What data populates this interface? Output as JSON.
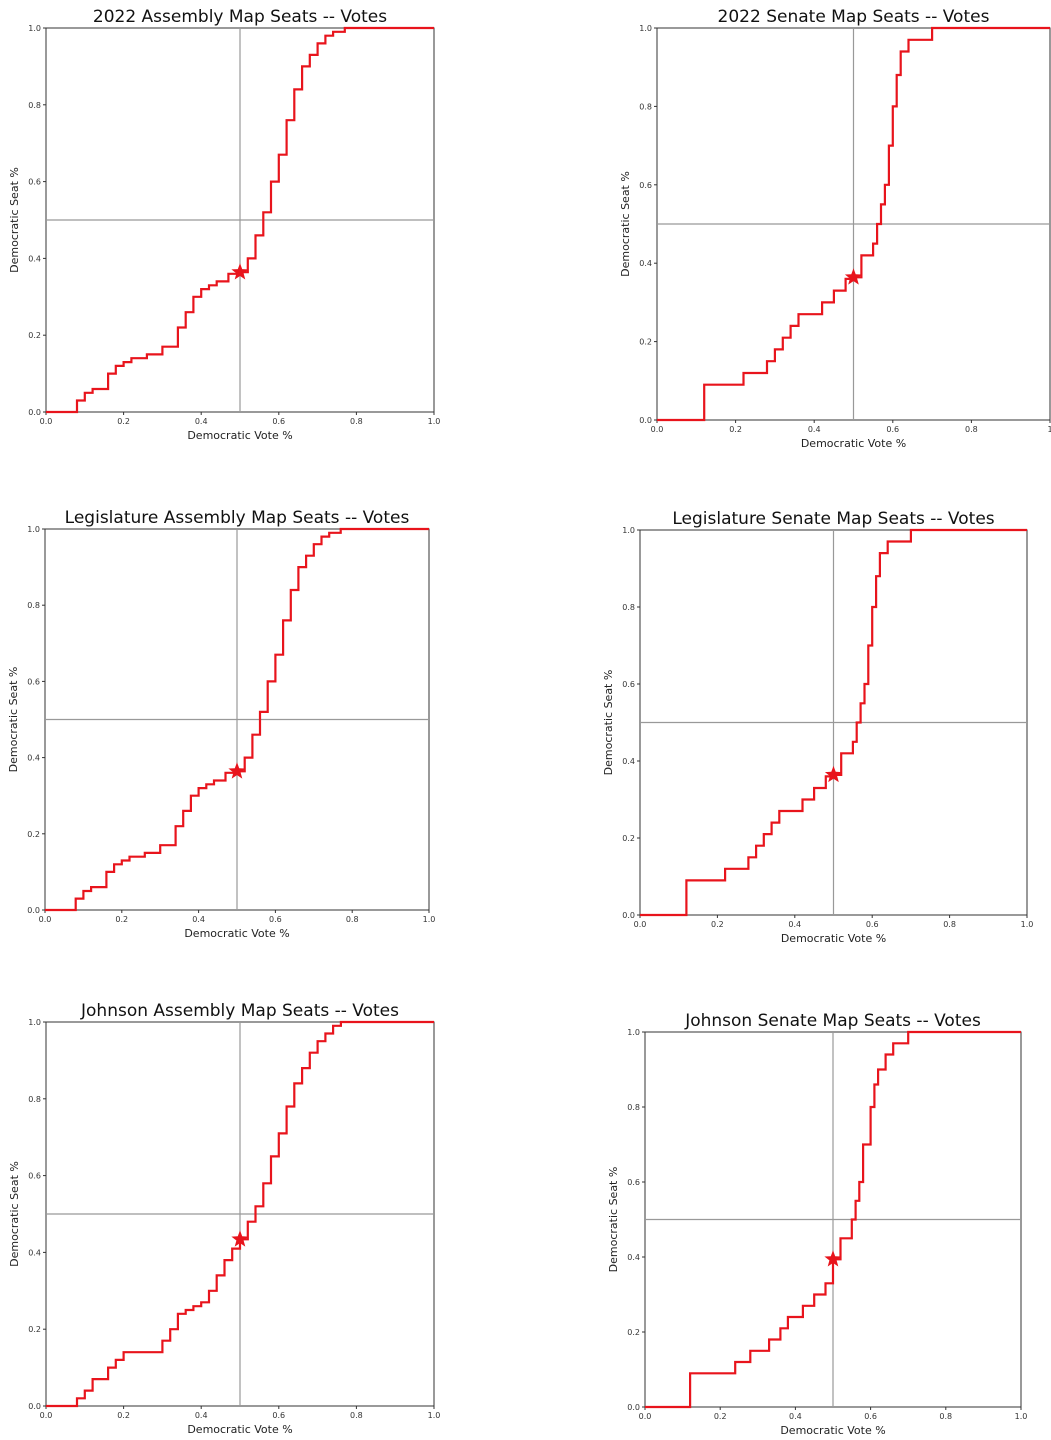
{
  "colors": {
    "curve": "#e8141c",
    "star": "#e8141c",
    "reference": "#999999"
  },
  "chart_data": [
    {
      "type": "line",
      "title": "2022 Assembly Map  Seats -- Votes",
      "xlabel": "Democratic Vote %",
      "ylabel": "Democratic Seat %",
      "xlim": [
        0,
        1
      ],
      "ylim": [
        0,
        1
      ],
      "xticks": [
        "0.0",
        "0.2",
        "0.4",
        "0.6",
        "0.8",
        "1.0"
      ],
      "yticks": [
        "0.0",
        "0.2",
        "0.4",
        "0.6",
        "0.8",
        "1.0"
      ],
      "reference_lines": {
        "x": 0.5,
        "y": 0.5
      },
      "marker": {
        "x": 0.5,
        "y": 0.364
      },
      "x": [
        0.0,
        0.06,
        0.08,
        0.1,
        0.12,
        0.16,
        0.18,
        0.2,
        0.22,
        0.26,
        0.3,
        0.34,
        0.36,
        0.38,
        0.4,
        0.42,
        0.44,
        0.47,
        0.5,
        0.52,
        0.54,
        0.56,
        0.58,
        0.6,
        0.62,
        0.64,
        0.66,
        0.68,
        0.7,
        0.72,
        0.74,
        0.77,
        1.0
      ],
      "y": [
        0.0,
        0.0,
        0.03,
        0.05,
        0.06,
        0.1,
        0.12,
        0.13,
        0.14,
        0.15,
        0.17,
        0.22,
        0.26,
        0.3,
        0.32,
        0.33,
        0.34,
        0.36,
        0.364,
        0.4,
        0.46,
        0.52,
        0.6,
        0.67,
        0.76,
        0.84,
        0.9,
        0.93,
        0.96,
        0.98,
        0.99,
        1.0,
        1.0
      ]
    },
    {
      "type": "line",
      "title": "2022 Senate Map  Seats -- Votes",
      "xlabel": "Democratic Vote %",
      "ylabel": "Democratic Seat %",
      "xlim": [
        0,
        1
      ],
      "ylim": [
        0,
        1
      ],
      "xticks": [
        "0.0",
        "0.2",
        "0.4",
        "0.6",
        "0.8",
        "1"
      ],
      "yticks": [
        "0.0",
        "0.2",
        "0.4",
        "0.6",
        "0.8",
        "1.0"
      ],
      "reference_lines": {
        "x": 0.5,
        "y": 0.5
      },
      "marker": {
        "x": 0.5,
        "y": 0.364
      },
      "x": [
        0.0,
        0.1,
        0.12,
        0.22,
        0.28,
        0.3,
        0.32,
        0.34,
        0.36,
        0.38,
        0.42,
        0.45,
        0.48,
        0.5,
        0.52,
        0.55,
        0.56,
        0.57,
        0.58,
        0.59,
        0.6,
        0.61,
        0.62,
        0.64,
        0.66,
        0.7,
        0.72,
        1.0
      ],
      "y": [
        0.0,
        0.0,
        0.09,
        0.12,
        0.15,
        0.18,
        0.21,
        0.24,
        0.27,
        0.27,
        0.3,
        0.33,
        0.36,
        0.364,
        0.42,
        0.45,
        0.5,
        0.55,
        0.6,
        0.7,
        0.8,
        0.88,
        0.94,
        0.97,
        0.97,
        1.0,
        1.0,
        1.0
      ]
    },
    {
      "type": "line",
      "title": "Legislature Assembly Map  Seats -- Votes",
      "xlabel": "Democratic Vote %",
      "ylabel": "Democratic Seat %",
      "xlim": [
        0,
        1
      ],
      "ylim": [
        0,
        1
      ],
      "xticks": [
        "0.0",
        "0.2",
        "0.4",
        "0.6",
        "0.8",
        "1.0"
      ],
      "yticks": [
        "0.0",
        "0.2",
        "0.4",
        "0.6",
        "0.8",
        "1.0"
      ],
      "reference_lines": {
        "x": 0.5,
        "y": 0.5
      },
      "marker": {
        "x": 0.5,
        "y": 0.364
      },
      "x": [
        0.0,
        0.06,
        0.08,
        0.1,
        0.12,
        0.16,
        0.18,
        0.2,
        0.22,
        0.26,
        0.3,
        0.34,
        0.36,
        0.38,
        0.4,
        0.42,
        0.44,
        0.47,
        0.5,
        0.52,
        0.54,
        0.56,
        0.58,
        0.6,
        0.62,
        0.64,
        0.66,
        0.68,
        0.7,
        0.72,
        0.74,
        0.77,
        1.0
      ],
      "y": [
        0.0,
        0.0,
        0.03,
        0.05,
        0.06,
        0.1,
        0.12,
        0.13,
        0.14,
        0.15,
        0.17,
        0.22,
        0.26,
        0.3,
        0.32,
        0.33,
        0.34,
        0.36,
        0.364,
        0.4,
        0.46,
        0.52,
        0.6,
        0.67,
        0.76,
        0.84,
        0.9,
        0.93,
        0.96,
        0.98,
        0.99,
        1.0,
        1.0
      ]
    },
    {
      "type": "line",
      "title": "Legislature Senate Map  Seats -- Votes",
      "xlabel": "Democratic Vote %",
      "ylabel": "Democratic Seat %",
      "xlim": [
        0,
        1
      ],
      "ylim": [
        0,
        1
      ],
      "xticks": [
        "0.0",
        "0.2",
        "0.4",
        "0.6",
        "0.8",
        "1.0"
      ],
      "yticks": [
        "0.0",
        "0.2",
        "0.4",
        "0.6",
        "0.8",
        "1.0"
      ],
      "reference_lines": {
        "x": 0.5,
        "y": 0.5
      },
      "marker": {
        "x": 0.5,
        "y": 0.364
      },
      "x": [
        0.0,
        0.1,
        0.12,
        0.22,
        0.28,
        0.3,
        0.32,
        0.34,
        0.36,
        0.38,
        0.42,
        0.45,
        0.48,
        0.5,
        0.52,
        0.55,
        0.56,
        0.57,
        0.58,
        0.59,
        0.6,
        0.61,
        0.62,
        0.64,
        0.66,
        0.7,
        0.72,
        1.0
      ],
      "y": [
        0.0,
        0.0,
        0.09,
        0.12,
        0.15,
        0.18,
        0.21,
        0.24,
        0.27,
        0.27,
        0.3,
        0.33,
        0.36,
        0.364,
        0.42,
        0.45,
        0.5,
        0.55,
        0.6,
        0.7,
        0.8,
        0.88,
        0.94,
        0.97,
        0.97,
        1.0,
        1.0,
        1.0
      ]
    },
    {
      "type": "line",
      "title": "Johnson Assembly Map  Seats -- Votes",
      "xlabel": "Democratic Vote %",
      "ylabel": "Democratic Seat %",
      "xlim": [
        0,
        1
      ],
      "ylim": [
        0,
        1
      ],
      "xticks": [
        "0.0",
        "0.2",
        "0.4",
        "0.6",
        "0.8",
        "1.0"
      ],
      "yticks": [
        "0.0",
        "0.2",
        "0.4",
        "0.6",
        "0.8",
        "1.0"
      ],
      "reference_lines": {
        "x": 0.5,
        "y": 0.5
      },
      "marker": {
        "x": 0.5,
        "y": 0.434
      },
      "x": [
        0.0,
        0.06,
        0.08,
        0.1,
        0.12,
        0.16,
        0.18,
        0.2,
        0.3,
        0.32,
        0.34,
        0.36,
        0.38,
        0.4,
        0.42,
        0.44,
        0.46,
        0.48,
        0.5,
        0.52,
        0.54,
        0.56,
        0.58,
        0.6,
        0.62,
        0.64,
        0.66,
        0.68,
        0.7,
        0.72,
        0.74,
        0.76,
        0.78,
        1.0
      ],
      "y": [
        0.0,
        0.0,
        0.02,
        0.04,
        0.07,
        0.1,
        0.12,
        0.14,
        0.17,
        0.2,
        0.24,
        0.25,
        0.26,
        0.27,
        0.3,
        0.34,
        0.38,
        0.41,
        0.434,
        0.48,
        0.52,
        0.58,
        0.65,
        0.71,
        0.78,
        0.84,
        0.88,
        0.92,
        0.95,
        0.97,
        0.99,
        1.0,
        1.0,
        1.0
      ]
    },
    {
      "type": "line",
      "title": "Johnson Senate Map  Seats -- Votes",
      "xlabel": "Democratic Vote %",
      "ylabel": "Democratic Seat %",
      "xlim": [
        0,
        1
      ],
      "ylim": [
        0,
        1
      ],
      "xticks": [
        "0.0",
        "0.2",
        "0.4",
        "0.6",
        "0.8",
        "1.0"
      ],
      "yticks": [
        "0.0",
        "0.2",
        "0.4",
        "0.6",
        "0.8",
        "1.0"
      ],
      "reference_lines": {
        "x": 0.5,
        "y": 0.5
      },
      "marker": {
        "x": 0.5,
        "y": 0.394
      },
      "x": [
        0.0,
        0.1,
        0.12,
        0.24,
        0.28,
        0.33,
        0.36,
        0.38,
        0.42,
        0.45,
        0.48,
        0.5,
        0.52,
        0.55,
        0.56,
        0.57,
        0.58,
        0.6,
        0.61,
        0.62,
        0.64,
        0.66,
        0.7,
        0.72,
        1.0
      ],
      "y": [
        0.0,
        0.0,
        0.09,
        0.12,
        0.15,
        0.18,
        0.21,
        0.24,
        0.27,
        0.3,
        0.33,
        0.394,
        0.45,
        0.5,
        0.55,
        0.6,
        0.7,
        0.8,
        0.86,
        0.9,
        0.94,
        0.97,
        1.0,
        1.0,
        1.0
      ]
    }
  ]
}
